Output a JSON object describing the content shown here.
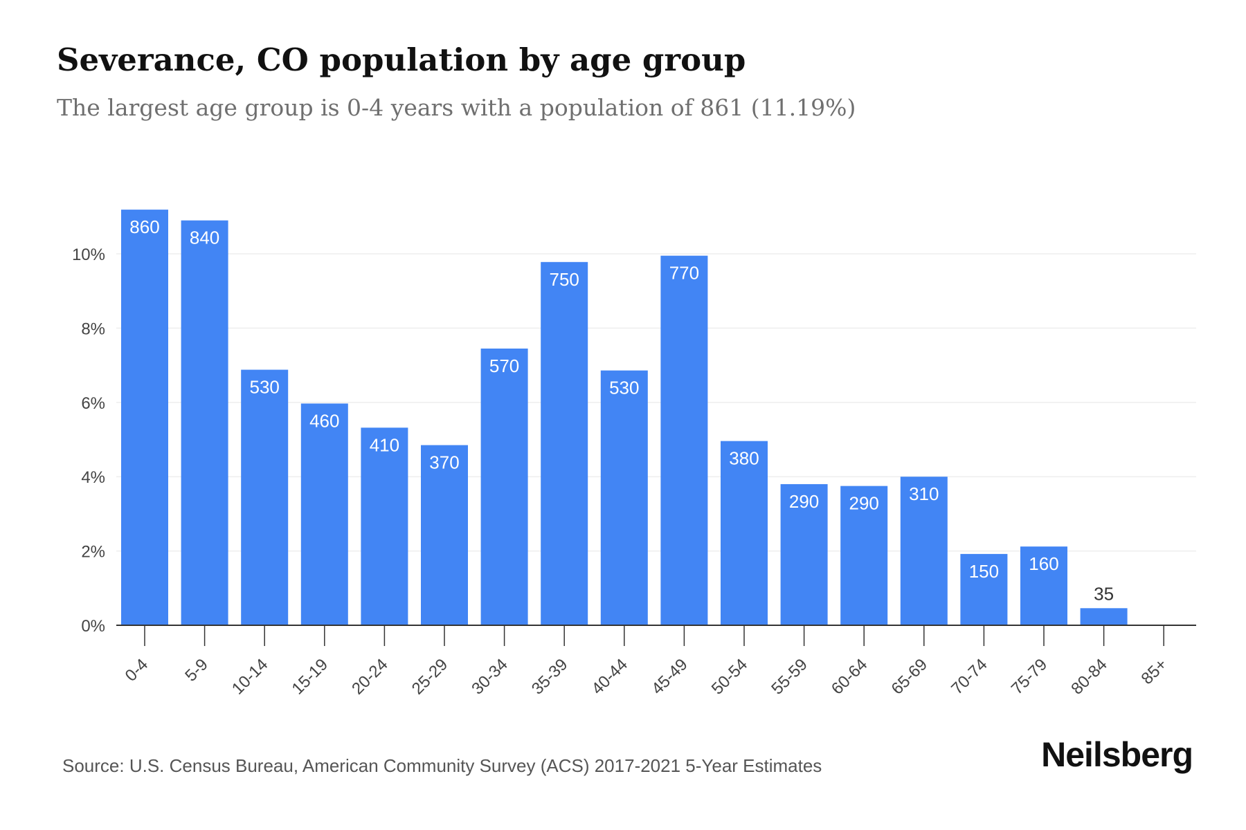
{
  "header": {
    "title": "Severance, CO population by age group",
    "subtitle": "The largest age group is 0-4 years with a population of 861 (11.19%)"
  },
  "footer": {
    "source": "Source: U.S. Census Bureau, American Community Survey (ACS) 2017-2021 5-Year Estimates",
    "brand": "Neilsberg"
  },
  "colors": {
    "bar": "#4285f4",
    "bar_label_inside": "#ffffff",
    "bar_label_outside": "#333333",
    "axis": "#333333",
    "grid": "#eeeeee",
    "tick_label": "#444444"
  },
  "chart_data": {
    "type": "bar",
    "title": "Severance, CO population by age group",
    "subtitle": "The largest age group is 0-4 years with a population of 861 (11.19%)",
    "categories": [
      "0-4",
      "5-9",
      "10-14",
      "15-19",
      "20-24",
      "25-29",
      "30-34",
      "35-39",
      "40-44",
      "45-49",
      "50-54",
      "55-59",
      "60-64",
      "65-69",
      "70-74",
      "75-79",
      "80-84",
      "85+"
    ],
    "values_percent": [
      11.19,
      10.9,
      6.88,
      5.97,
      5.32,
      4.85,
      7.45,
      9.78,
      6.86,
      9.95,
      4.96,
      3.8,
      3.75,
      4.0,
      1.92,
      2.12,
      0.46,
      0
    ],
    "data_labels": [
      "860",
      "840",
      "530",
      "460",
      "410",
      "370",
      "570",
      "750",
      "530",
      "770",
      "380",
      "290",
      "290",
      "310",
      "150",
      "160",
      "35",
      ""
    ],
    "y_ticks": [
      0,
      2,
      4,
      6,
      8,
      10
    ],
    "y_tick_labels": [
      "0%",
      "2%",
      "4%",
      "6%",
      "8%",
      "10%"
    ],
    "ylim": [
      0,
      11.2
    ],
    "xlabel": "",
    "ylabel": "",
    "grid": true,
    "legend": "none"
  }
}
